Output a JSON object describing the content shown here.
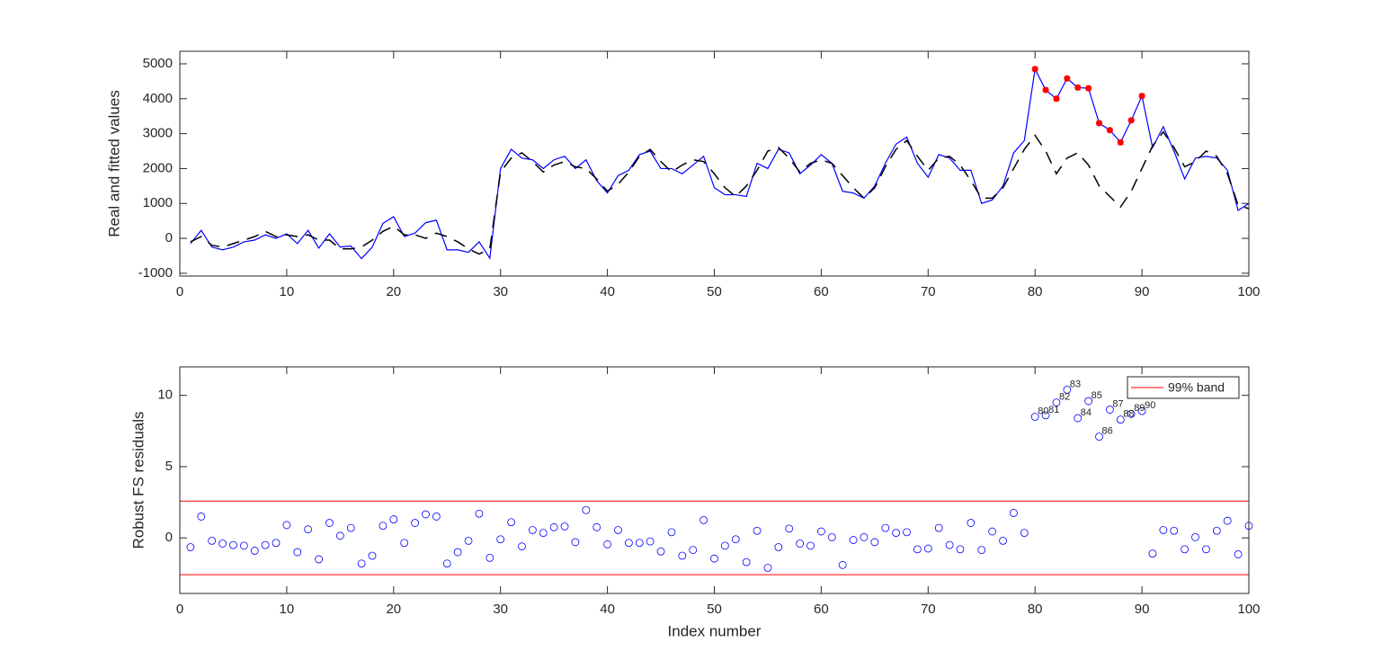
{
  "chart_data": [
    {
      "type": "line",
      "ylabel": "Real and fitted values",
      "x": [
        1,
        2,
        3,
        4,
        5,
        6,
        7,
        8,
        9,
        10,
        11,
        12,
        13,
        14,
        15,
        16,
        17,
        18,
        19,
        20,
        21,
        22,
        23,
        24,
        25,
        26,
        27,
        28,
        29,
        30,
        31,
        32,
        33,
        34,
        35,
        36,
        37,
        38,
        39,
        40,
        41,
        42,
        43,
        44,
        45,
        46,
        47,
        48,
        49,
        50,
        51,
        52,
        53,
        54,
        55,
        56,
        57,
        58,
        59,
        60,
        61,
        62,
        63,
        64,
        65,
        66,
        67,
        68,
        69,
        70,
        71,
        72,
        73,
        74,
        75,
        76,
        77,
        78,
        79,
        80,
        81,
        82,
        83,
        84,
        85,
        86,
        87,
        88,
        89,
        90,
        91,
        92,
        93,
        94,
        95,
        96,
        97,
        98,
        99,
        100
      ],
      "series": [
        {
          "color": "#0000ff",
          "line_style": "solid",
          "values": [
            -150,
            230,
            -250,
            -330,
            -250,
            -100,
            -50,
            100,
            0,
            130,
            -150,
            230,
            -280,
            130,
            -250,
            -220,
            -580,
            -250,
            430,
            620,
            50,
            150,
            450,
            520,
            -330,
            -330,
            -400,
            -100,
            -570,
            2000,
            2550,
            2300,
            2250,
            2000,
            2250,
            2350,
            2000,
            2250,
            1650,
            1300,
            1800,
            1950,
            2400,
            2500,
            2000,
            2000,
            1850,
            2100,
            2350,
            1450,
            1250,
            1250,
            1200,
            2150,
            2000,
            2550,
            2450,
            1850,
            2100,
            2400,
            2150,
            1350,
            1300,
            1150,
            1500,
            2150,
            2700,
            2900,
            2150,
            1750,
            2400,
            2300,
            1950,
            1950,
            1000,
            1100,
            1500,
            2450,
            2800,
            4850,
            4250,
            4000,
            4580,
            4320,
            4300,
            3300,
            3100,
            2750,
            3380,
            4080,
            2600,
            3200,
            2500,
            1700,
            2300,
            2350,
            2300,
            1950,
            800,
            1000
          ],
          "marked": {
            "color": "#ff0000",
            "x": [
              80,
              81,
              82,
              83,
              84,
              85,
              86,
              87,
              88,
              89,
              90
            ]
          }
        },
        {
          "color": "#000000",
          "line_style": "dashed",
          "values": [
            -100,
            50,
            -200,
            -250,
            -150,
            -50,
            50,
            200,
            50,
            100,
            50,
            100,
            -50,
            -50,
            -300,
            -300,
            -250,
            -50,
            200,
            350,
            100,
            100,
            0,
            150,
            50,
            -100,
            -300,
            -450,
            -300,
            1900,
            2300,
            2450,
            2200,
            1900,
            2100,
            2200,
            2050,
            2000,
            1700,
            1350,
            1550,
            1900,
            2350,
            2550,
            2200,
            1900,
            2100,
            2250,
            2200,
            1850,
            1450,
            1200,
            1500,
            1950,
            2500,
            2600,
            2300,
            1900,
            2150,
            2250,
            2150,
            1800,
            1450,
            1150,
            1450,
            2050,
            2550,
            2800,
            2350,
            1950,
            2300,
            2350,
            2100,
            1650,
            1150,
            1150,
            1450,
            2000,
            2550,
            2950,
            2500,
            1850,
            2300,
            2450,
            2100,
            1500,
            1200,
            900,
            1350,
            2000,
            2650,
            3050,
            2600,
            2050,
            2200,
            2500,
            2350,
            1850,
            950,
            850
          ]
        }
      ],
      "xlim": [
        0,
        100
      ],
      "xticks": [
        0,
        10,
        20,
        30,
        40,
        50,
        60,
        70,
        80,
        90,
        100
      ],
      "ylim": [
        -1080,
        5360
      ],
      "yticks": [
        -1000,
        0,
        1000,
        2000,
        3000,
        4000,
        5000
      ]
    },
    {
      "type": "scatter",
      "ylabel": "Robust FS residuals",
      "xlabel": "Index number",
      "x": [
        1,
        2,
        3,
        4,
        5,
        6,
        7,
        8,
        9,
        10,
        11,
        12,
        13,
        14,
        15,
        16,
        17,
        18,
        19,
        20,
        21,
        22,
        23,
        24,
        25,
        26,
        27,
        28,
        29,
        30,
        31,
        32,
        33,
        34,
        35,
        36,
        37,
        38,
        39,
        40,
        41,
        42,
        43,
        44,
        45,
        46,
        47,
        48,
        49,
        50,
        51,
        52,
        53,
        54,
        55,
        56,
        57,
        58,
        59,
        60,
        61,
        62,
        63,
        64,
        65,
        66,
        67,
        68,
        69,
        70,
        71,
        72,
        73,
        74,
        75,
        76,
        77,
        78,
        79,
        80,
        81,
        82,
        83,
        84,
        85,
        86,
        87,
        88,
        89,
        90,
        91,
        92,
        93,
        94,
        95,
        96,
        97,
        98,
        99,
        100
      ],
      "series": [
        {
          "color": "#0000ff",
          "values": [
            -0.65,
            1.5,
            -0.2,
            -0.4,
            -0.5,
            -0.55,
            -0.9,
            -0.5,
            -0.35,
            0.9,
            -1.0,
            0.6,
            -1.5,
            1.05,
            0.15,
            0.7,
            -1.8,
            -1.25,
            0.85,
            1.3,
            -0.35,
            1.05,
            1.65,
            1.5,
            -1.8,
            -1.0,
            -0.2,
            1.7,
            -1.4,
            -0.1,
            1.1,
            -0.6,
            0.55,
            0.35,
            0.75,
            0.8,
            -0.3,
            1.95,
            0.75,
            -0.45,
            0.55,
            -0.35,
            -0.35,
            -0.25,
            -0.95,
            0.4,
            -1.25,
            -0.85,
            1.25,
            -1.45,
            -0.55,
            -0.1,
            -1.7,
            0.5,
            -2.1,
            -0.65,
            0.65,
            -0.4,
            -0.55,
            0.45,
            0.05,
            -1.9,
            -0.15,
            0.05,
            -0.3,
            0.7,
            0.35,
            0.4,
            -0.8,
            -0.75,
            0.7,
            -0.5,
            -0.8,
            1.05,
            -0.85,
            0.45,
            -0.2,
            1.75,
            0.35,
            8.5,
            8.6,
            9.5,
            10.4,
            8.4,
            9.6,
            7.1,
            9.0,
            8.3,
            8.7,
            8.9,
            -1.1,
            0.55,
            0.5,
            -0.8,
            0.05,
            -0.8,
            0.5,
            1.2,
            -1.15,
            0.85
          ]
        }
      ],
      "labeled_x": [
        80,
        81,
        82,
        83,
        84,
        85,
        86,
        87,
        88,
        89,
        90
      ],
      "band": {
        "name": "99% band",
        "color": "#ff0000",
        "values": [
          2.58,
          -2.58
        ]
      },
      "legend": "northeast",
      "xlim": [
        0,
        100
      ],
      "xticks": [
        0,
        10,
        20,
        30,
        40,
        50,
        60,
        70,
        80,
        90,
        100
      ],
      "ylim": [
        -3.9,
        12
      ],
      "yticks": [
        0,
        5,
        10
      ]
    }
  ]
}
